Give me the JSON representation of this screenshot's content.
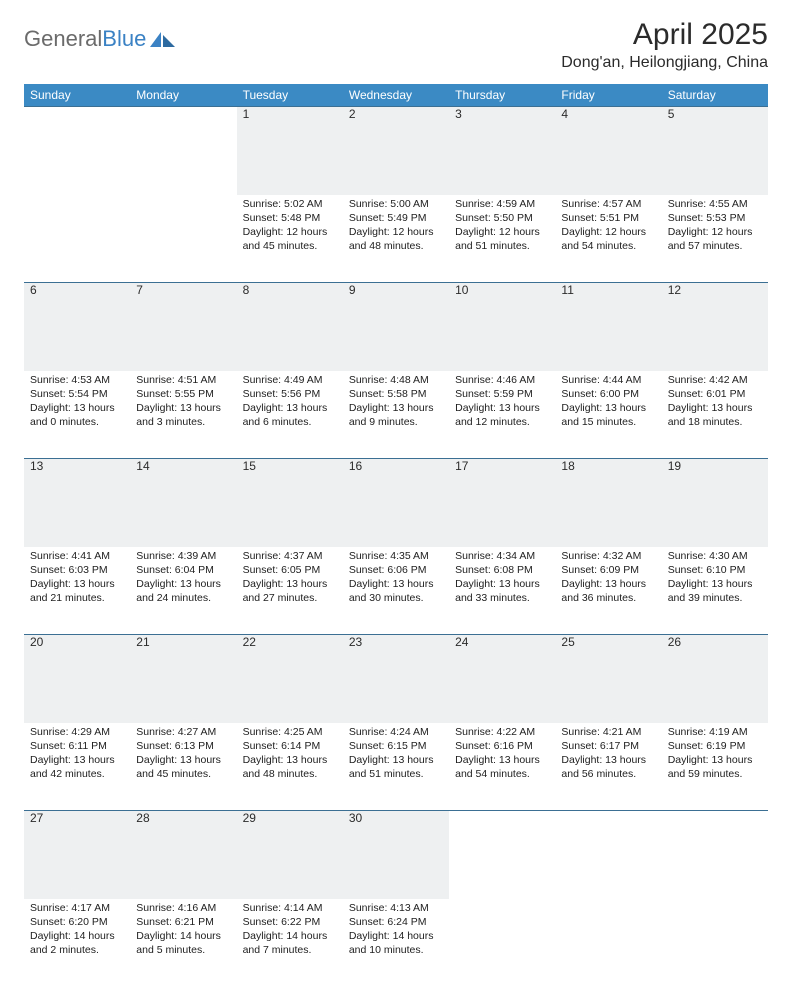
{
  "brand": {
    "name_gray": "General",
    "name_blue": "Blue"
  },
  "title": "April 2025",
  "location": "Dong'an, Heilongjiang, China",
  "colors": {
    "header_bg": "#3b8ac4",
    "header_text": "#ffffff",
    "daynum_bg": "#eef0f1",
    "row_border": "#3b6f93",
    "body_text": "#212121",
    "logo_gray": "#6b6b6b",
    "logo_blue": "#3b82c4"
  },
  "typography": {
    "title_fontsize": 30,
    "location_fontsize": 16,
    "header_fontsize": 12,
    "cell_fontsize": 10.5
  },
  "day_headers": [
    "Sunday",
    "Monday",
    "Tuesday",
    "Wednesday",
    "Thursday",
    "Friday",
    "Saturday"
  ],
  "weeks": [
    [
      null,
      null,
      {
        "n": "1",
        "sr": "5:02 AM",
        "ss": "5:48 PM",
        "dl": "12 hours and 45 minutes."
      },
      {
        "n": "2",
        "sr": "5:00 AM",
        "ss": "5:49 PM",
        "dl": "12 hours and 48 minutes."
      },
      {
        "n": "3",
        "sr": "4:59 AM",
        "ss": "5:50 PM",
        "dl": "12 hours and 51 minutes."
      },
      {
        "n": "4",
        "sr": "4:57 AM",
        "ss": "5:51 PM",
        "dl": "12 hours and 54 minutes."
      },
      {
        "n": "5",
        "sr": "4:55 AM",
        "ss": "5:53 PM",
        "dl": "12 hours and 57 minutes."
      }
    ],
    [
      {
        "n": "6",
        "sr": "4:53 AM",
        "ss": "5:54 PM",
        "dl": "13 hours and 0 minutes."
      },
      {
        "n": "7",
        "sr": "4:51 AM",
        "ss": "5:55 PM",
        "dl": "13 hours and 3 minutes."
      },
      {
        "n": "8",
        "sr": "4:49 AM",
        "ss": "5:56 PM",
        "dl": "13 hours and 6 minutes."
      },
      {
        "n": "9",
        "sr": "4:48 AM",
        "ss": "5:58 PM",
        "dl": "13 hours and 9 minutes."
      },
      {
        "n": "10",
        "sr": "4:46 AM",
        "ss": "5:59 PM",
        "dl": "13 hours and 12 minutes."
      },
      {
        "n": "11",
        "sr": "4:44 AM",
        "ss": "6:00 PM",
        "dl": "13 hours and 15 minutes."
      },
      {
        "n": "12",
        "sr": "4:42 AM",
        "ss": "6:01 PM",
        "dl": "13 hours and 18 minutes."
      }
    ],
    [
      {
        "n": "13",
        "sr": "4:41 AM",
        "ss": "6:03 PM",
        "dl": "13 hours and 21 minutes."
      },
      {
        "n": "14",
        "sr": "4:39 AM",
        "ss": "6:04 PM",
        "dl": "13 hours and 24 minutes."
      },
      {
        "n": "15",
        "sr": "4:37 AM",
        "ss": "6:05 PM",
        "dl": "13 hours and 27 minutes."
      },
      {
        "n": "16",
        "sr": "4:35 AM",
        "ss": "6:06 PM",
        "dl": "13 hours and 30 minutes."
      },
      {
        "n": "17",
        "sr": "4:34 AM",
        "ss": "6:08 PM",
        "dl": "13 hours and 33 minutes."
      },
      {
        "n": "18",
        "sr": "4:32 AM",
        "ss": "6:09 PM",
        "dl": "13 hours and 36 minutes."
      },
      {
        "n": "19",
        "sr": "4:30 AM",
        "ss": "6:10 PM",
        "dl": "13 hours and 39 minutes."
      }
    ],
    [
      {
        "n": "20",
        "sr": "4:29 AM",
        "ss": "6:11 PM",
        "dl": "13 hours and 42 minutes."
      },
      {
        "n": "21",
        "sr": "4:27 AM",
        "ss": "6:13 PM",
        "dl": "13 hours and 45 minutes."
      },
      {
        "n": "22",
        "sr": "4:25 AM",
        "ss": "6:14 PM",
        "dl": "13 hours and 48 minutes."
      },
      {
        "n": "23",
        "sr": "4:24 AM",
        "ss": "6:15 PM",
        "dl": "13 hours and 51 minutes."
      },
      {
        "n": "24",
        "sr": "4:22 AM",
        "ss": "6:16 PM",
        "dl": "13 hours and 54 minutes."
      },
      {
        "n": "25",
        "sr": "4:21 AM",
        "ss": "6:17 PM",
        "dl": "13 hours and 56 minutes."
      },
      {
        "n": "26",
        "sr": "4:19 AM",
        "ss": "6:19 PM",
        "dl": "13 hours and 59 minutes."
      }
    ],
    [
      {
        "n": "27",
        "sr": "4:17 AM",
        "ss": "6:20 PM",
        "dl": "14 hours and 2 minutes."
      },
      {
        "n": "28",
        "sr": "4:16 AM",
        "ss": "6:21 PM",
        "dl": "14 hours and 5 minutes."
      },
      {
        "n": "29",
        "sr": "4:14 AM",
        "ss": "6:22 PM",
        "dl": "14 hours and 7 minutes."
      },
      {
        "n": "30",
        "sr": "4:13 AM",
        "ss": "6:24 PM",
        "dl": "14 hours and 10 minutes."
      },
      null,
      null,
      null
    ]
  ],
  "labels": {
    "sunrise": "Sunrise:",
    "sunset": "Sunset:",
    "daylight": "Daylight:"
  }
}
